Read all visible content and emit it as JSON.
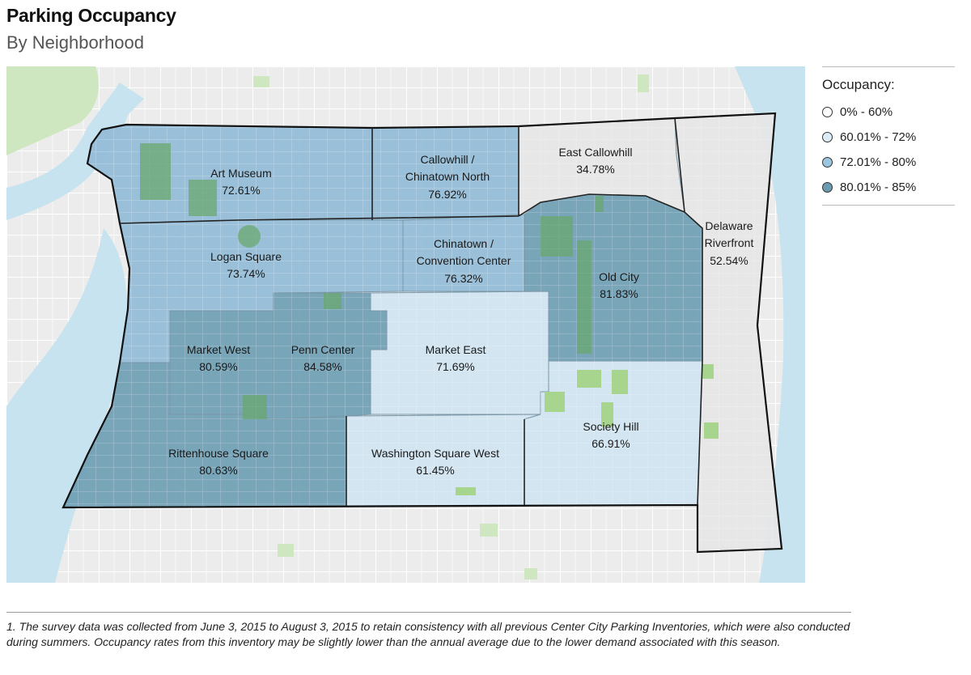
{
  "header": {
    "title": "Parking Occupancy",
    "subtitle": "By Neighborhood"
  },
  "legend": {
    "title": "Occupancy:",
    "items": [
      {
        "label": "0% - 60%",
        "color": "#ffffff"
      },
      {
        "label": "60.01% - 72%",
        "color": "#dcedf7"
      },
      {
        "label": "72.01% - 80%",
        "color": "#9cc5df"
      },
      {
        "label": "80.01% - 85%",
        "color": "#6b9bb0"
      }
    ]
  },
  "neighborhoods": [
    {
      "name": "Art Museum",
      "value": "72.61%",
      "bin": 2
    },
    {
      "name": "Callowhill /",
      "name2": "Chinatown North",
      "value": "76.92%",
      "bin": 2
    },
    {
      "name": "East Callowhill",
      "value": "34.78%",
      "bin": 0
    },
    {
      "name": "Logan Square",
      "value": "73.74%",
      "bin": 2
    },
    {
      "name": "Chinatown /",
      "name2": "Convention Center",
      "value": "76.32%",
      "bin": 2
    },
    {
      "name": "Old City",
      "value": "81.83%",
      "bin": 3
    },
    {
      "name": "Delaware",
      "name2": "Riverfront",
      "value": "52.54%",
      "bin": 0
    },
    {
      "name": "Market West",
      "value": "80.59%",
      "bin": 3
    },
    {
      "name": "Penn Center",
      "value": "84.58%",
      "bin": 3
    },
    {
      "name": "Market East",
      "value": "71.69%",
      "bin": 1
    },
    {
      "name": "Rittenhouse Square",
      "value": "80.63%",
      "bin": 3
    },
    {
      "name": "Washington Square West",
      "value": "61.45%",
      "bin": 1
    },
    {
      "name": "Society Hill",
      "value": "66.91%",
      "bin": 1
    }
  ],
  "footnote": "1. The survey data was collected from June 3, 2015 to August 3, 2015 to retain consistency with all previous Center City Parking Inventories, which were also conducted during summers. Occupancy rates from this inventory may be slightly lower than the annual average due to the lower demand associated with this season."
}
